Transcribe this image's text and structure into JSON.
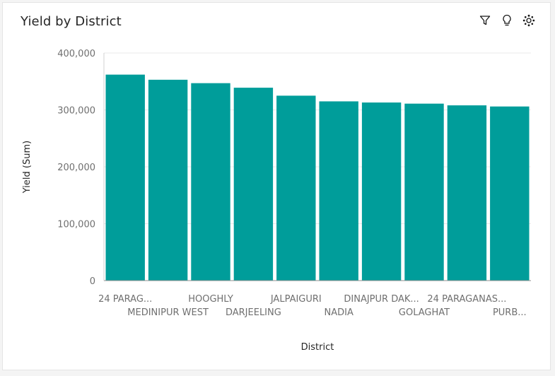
{
  "header": {
    "title": "Yield by District",
    "icons": [
      "filter-icon",
      "lightbulb-icon",
      "settings-icon"
    ]
  },
  "chart_data": {
    "type": "bar",
    "title": "Yield by District",
    "xlabel": "District",
    "ylabel": "Yield (Sum)",
    "categories": [
      "24 PARAG...",
      "MEDINIPUR WEST",
      "HOOGHLY",
      "DARJEELING",
      "JALPAIGURI",
      "NADIA",
      "DINAJPUR DAK...",
      "GOLAGHAT",
      "24 PARAGANAS...",
      "PURB..."
    ],
    "values": [
      362000,
      353000,
      347000,
      339000,
      325000,
      315000,
      313000,
      311000,
      308000,
      306000
    ],
    "ylim": [
      0,
      400000
    ],
    "yticks": [
      "0",
      "100,000",
      "200,000",
      "300,000",
      "400,000"
    ],
    "bar_color": "#009d9a",
    "grid": true
  }
}
